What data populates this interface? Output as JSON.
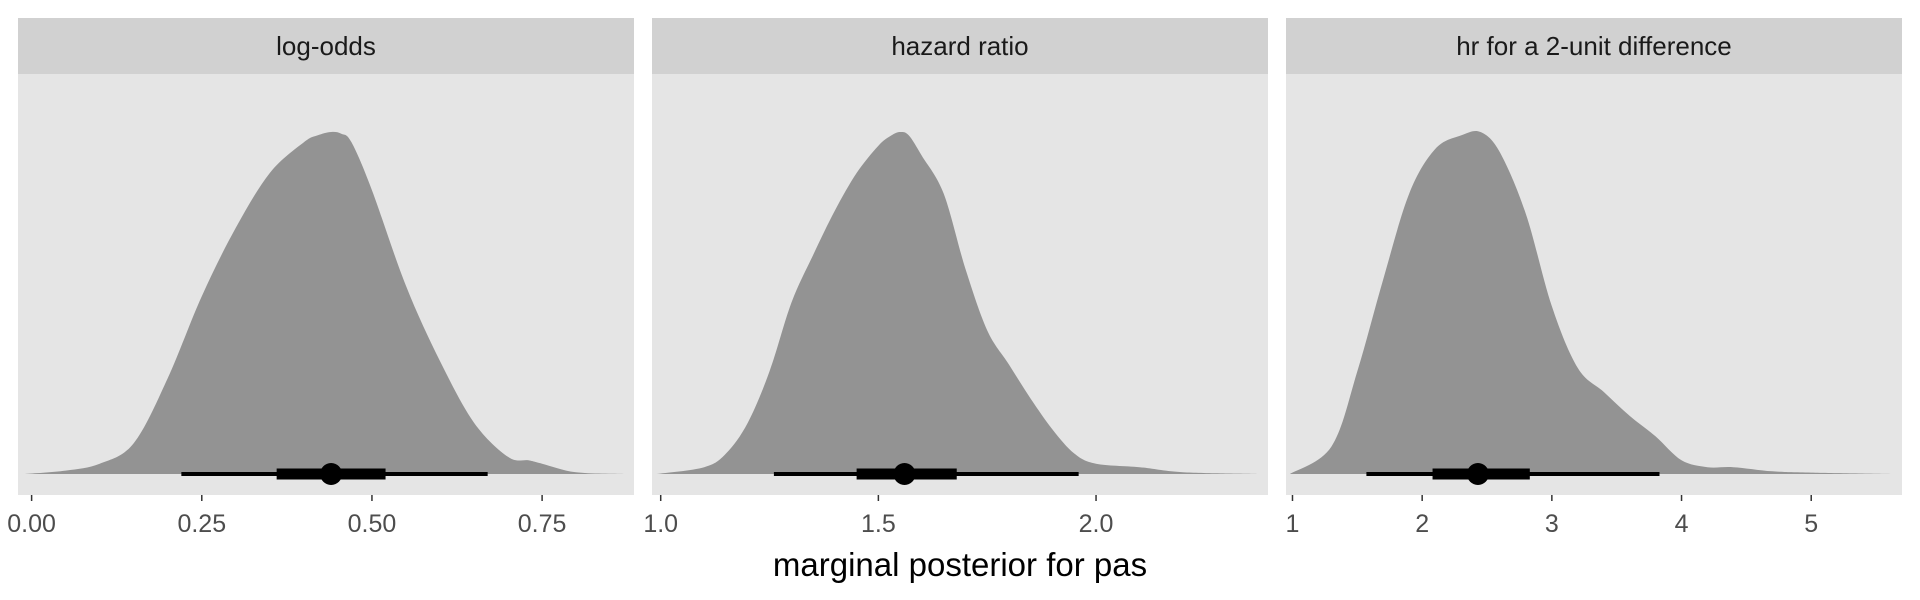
{
  "chart_data": {
    "type": "area",
    "xlabel": "marginal posterior for pas",
    "ylabel": "",
    "grid": false,
    "legend": "none",
    "colors": {
      "panel_bg": "#e5e5e5",
      "strip_bg": "#d1d1d1",
      "density_fill": "#939393",
      "interval": "#000000"
    },
    "panels": [
      {
        "strip": "log-odds",
        "xlim": [
          -0.02,
          0.885
        ],
        "ticks": [
          0.0,
          0.25,
          0.5,
          0.75
        ],
        "tick_labels": [
          "0.00",
          "0.25",
          "0.50",
          "0.75"
        ],
        "density": {
          "x": [
            -0.01,
            0.05,
            0.1,
            0.15,
            0.2,
            0.25,
            0.3,
            0.35,
            0.4,
            0.42,
            0.44,
            0.455,
            0.47,
            0.5,
            0.55,
            0.6,
            0.65,
            0.7,
            0.73,
            0.75,
            0.8,
            0.87
          ],
          "y": [
            0.0,
            0.01,
            0.03,
            0.09,
            0.28,
            0.52,
            0.72,
            0.88,
            0.97,
            0.99,
            1.0,
            0.995,
            0.97,
            0.83,
            0.55,
            0.33,
            0.15,
            0.05,
            0.04,
            0.03,
            0.005,
            0.0
          ]
        },
        "interval": {
          "point": 0.44,
          "inner": [
            0.36,
            0.52
          ],
          "outer": [
            0.22,
            0.67
          ]
        }
      },
      {
        "strip": "hazard ratio",
        "xlim": [
          0.98,
          2.395
        ],
        "ticks": [
          1.0,
          1.5,
          2.0
        ],
        "tick_labels": [
          "1.0",
          "1.5",
          "2.0"
        ],
        "density": {
          "x": [
            0.99,
            1.1,
            1.15,
            1.2,
            1.25,
            1.3,
            1.35,
            1.4,
            1.45,
            1.5,
            1.53,
            1.55,
            1.57,
            1.6,
            1.65,
            1.7,
            1.75,
            1.8,
            1.85,
            1.9,
            1.95,
            2.0,
            2.1,
            2.2,
            2.37
          ],
          "y": [
            0.0,
            0.02,
            0.06,
            0.15,
            0.3,
            0.5,
            0.64,
            0.77,
            0.88,
            0.96,
            0.99,
            1.0,
            0.99,
            0.93,
            0.82,
            0.6,
            0.42,
            0.32,
            0.22,
            0.13,
            0.06,
            0.03,
            0.02,
            0.005,
            0.0
          ]
        },
        "interval": {
          "point": 1.56,
          "inner": [
            1.45,
            1.68
          ],
          "outer": [
            1.26,
            1.96
          ]
        }
      },
      {
        "strip": "hr for a 2-unit difference",
        "xlim": [
          0.95,
          5.7
        ],
        "ticks": [
          1,
          2,
          3,
          4,
          5
        ],
        "tick_labels": [
          "1",
          "2",
          "3",
          "4",
          "5"
        ],
        "density": {
          "x": [
            0.98,
            1.3,
            1.5,
            1.7,
            1.9,
            2.1,
            2.3,
            2.45,
            2.6,
            2.8,
            3.0,
            3.2,
            3.4,
            3.6,
            3.8,
            4.0,
            4.2,
            4.4,
            4.7,
            5.0,
            5.65
          ],
          "y": [
            0.0,
            0.08,
            0.3,
            0.57,
            0.82,
            0.95,
            0.99,
            1.0,
            0.94,
            0.76,
            0.49,
            0.31,
            0.24,
            0.17,
            0.11,
            0.04,
            0.02,
            0.02,
            0.008,
            0.004,
            0.0
          ]
        },
        "interval": {
          "point": 2.43,
          "inner": [
            2.08,
            2.83
          ],
          "outer": [
            1.57,
            3.83
          ]
        }
      }
    ]
  }
}
